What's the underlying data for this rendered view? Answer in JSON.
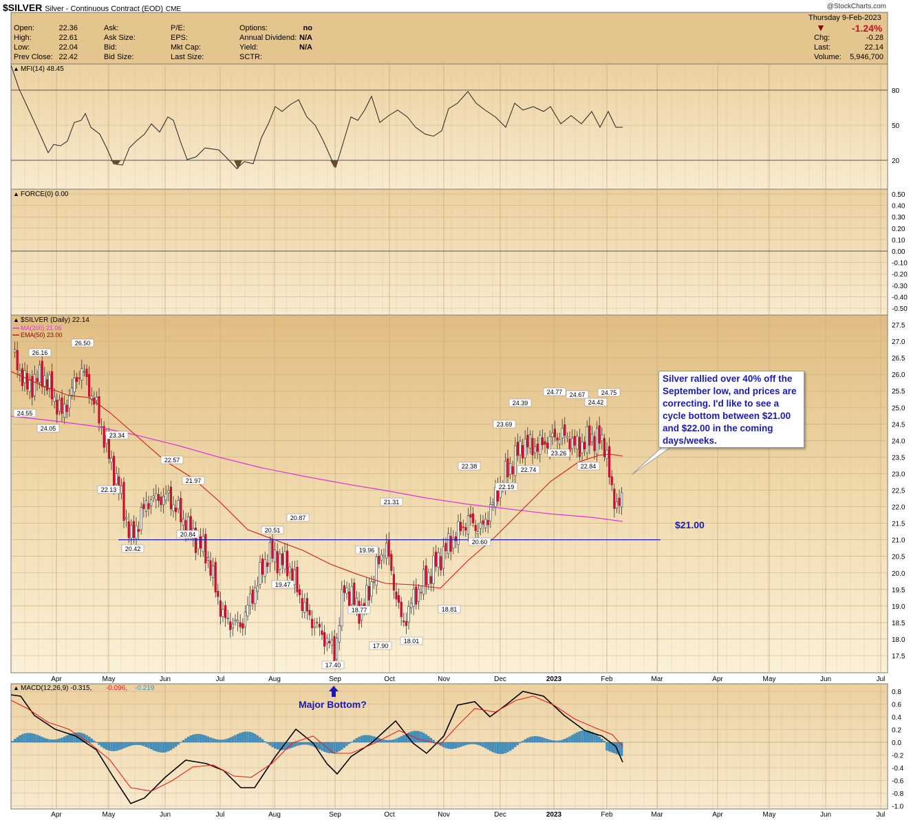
{
  "header": {
    "symbol": "$SILVER",
    "description": "Silver - Continuous Contract (EOD)",
    "exchange": "CME",
    "watermark": "@StockCharts.com",
    "date": "Thursday  9-Feb-2023",
    "change_pct": "-1.24%"
  },
  "quote_left": [
    {
      "label": "Open:",
      "value": "22.36"
    },
    {
      "label": "High:",
      "value": "22.61"
    },
    {
      "label": "Low:",
      "value": "22.04"
    },
    {
      "label": "Prev Close:",
      "value": "22.42"
    }
  ],
  "quote_mid1": [
    "Ask:",
    "Ask Size:",
    "Bid:",
    "Bid Size:"
  ],
  "quote_mid2": [
    "P/E:",
    "EPS:",
    "Mkt Cap:",
    "Last Size:"
  ],
  "quote_mid3": [
    {
      "label": "Options:",
      "value": "no"
    },
    {
      "label": "Annual Dividend:",
      "value": "N/A"
    },
    {
      "label": "Yield:",
      "value": "N/A"
    },
    {
      "label": "SCTR:",
      "value": ""
    }
  ],
  "quote_right": [
    {
      "label": "Chg:",
      "value": "-0.28"
    },
    {
      "label": "Last:",
      "value": "22.14"
    },
    {
      "label": "Volume:",
      "value": "5,946,700"
    }
  ],
  "colors": {
    "up": "#ffffff",
    "down": "#c8102e",
    "ma200": "#dd33dd",
    "ema50": "#d01818",
    "macd": "#000000",
    "signal": "#e02020",
    "histogram": "#3f8fc0",
    "annotation": "#1a1ab0",
    "panel_bg": "#e6c489"
  },
  "mfi_panel": {
    "label": "MFI(14) 48.45",
    "ticks": [
      "80",
      "50",
      "20"
    ]
  },
  "force_panel": {
    "label": "FORCE(0) 0.00",
    "ticks": [
      "0.50",
      "0.40",
      "0.30",
      "0.20",
      "0.10",
      "0.00",
      "-0.10",
      "-0.20",
      "-0.30",
      "-0.40",
      "-0.50"
    ]
  },
  "price_panel": {
    "label": "$SILVER (Daily) 22.14",
    "ma_label": "MA(200) 21.06",
    "ema_label": "EMA(50) 23.00",
    "ticks": [
      "27.5",
      "27.0",
      "26.5",
      "26.0",
      "25.5",
      "25.0",
      "24.5",
      "24.0",
      "23.5",
      "23.0",
      "22.5",
      "22.0",
      "21.5",
      "21.0",
      "20.5",
      "20.0",
      "19.5",
      "19.0",
      "18.5",
      "18.0",
      "17.5"
    ],
    "x_labels": [
      "Apr",
      "May",
      "Jun",
      "Jul",
      "Aug",
      "Sep",
      "Oct",
      "Nov",
      "Dec",
      "2023",
      "Feb",
      "Mar",
      "Apr",
      "May",
      "Jun",
      "Jul"
    ],
    "annotation_level": "$21.00",
    "callout": "Silver rallied over 40% off the September low, and prices are correcting. I'd like to see a cycle bottom between $21.00 and $22.00 in the coming days/weeks."
  },
  "macd_panel": {
    "label": "MACD(12,26,9) -0.315,",
    "signal_val": "-0.096,",
    "hist_val": "-0.219",
    "annotation": "Major Bottom?",
    "ticks": [
      "0.8",
      "0.6",
      "0.4",
      "0.2",
      "0.0",
      "-0.2",
      "-0.4",
      "-0.6",
      "-0.8",
      "-1.0"
    ],
    "x_labels": [
      "Apr",
      "May",
      "Jun",
      "Jul",
      "Aug",
      "Sep",
      "Oct",
      "Nov",
      "Dec",
      "2023",
      "Feb",
      "Mar",
      "Apr",
      "May",
      "Jun",
      "Jul"
    ]
  },
  "chart_data": {
    "type": "candlestick",
    "title": "$SILVER Silver - Continuous Contract (EOD) CME",
    "price_labels": [
      {
        "date": "Mar",
        "value": 26.16
      },
      {
        "date": "Apr",
        "value": 26.5
      },
      {
        "date": "Mar",
        "value": 24.55
      },
      {
        "date": "Apr",
        "value": 24.05
      },
      {
        "date": "Apr",
        "value": 23.34
      },
      {
        "date": "Apr",
        "value": 22.13
      },
      {
        "date": "May",
        "value": 20.42
      },
      {
        "date": "May",
        "value": 22.57
      },
      {
        "date": "Jun",
        "value": 21.97
      },
      {
        "date": "Jun",
        "value": 20.84
      },
      {
        "date": "Jul",
        "value": 20.51
      },
      {
        "date": "Jul",
        "value": 20.87
      },
      {
        "date": "Jul",
        "value": 19.47
      },
      {
        "date": "Sep",
        "value": 17.4
      },
      {
        "date": "Aug",
        "value": 18.77
      },
      {
        "date": "Aug",
        "value": 19.96
      },
      {
        "date": "Sep",
        "value": 17.9
      },
      {
        "date": "Oct",
        "value": 21.31
      },
      {
        "date": "Oct",
        "value": 18.01
      },
      {
        "date": "Oct",
        "value": 18.81
      },
      {
        "date": "Nov",
        "value": 22.38
      },
      {
        "date": "Nov",
        "value": 20.6
      },
      {
        "date": "Nov",
        "value": 22.19
      },
      {
        "date": "Nov",
        "value": 23.69
      },
      {
        "date": "Dec",
        "value": 22.74
      },
      {
        "date": "Dec",
        "value": 24.39
      },
      {
        "date": "Dec",
        "value": 24.77
      },
      {
        "date": "Dec",
        "value": 23.26
      },
      {
        "date": "Jan",
        "value": 24.67
      },
      {
        "date": "Jan",
        "value": 22.84
      },
      {
        "date": "Jan",
        "value": 24.42
      },
      {
        "date": "Feb",
        "value": 24.75
      }
    ],
    "close_path": [
      [
        "Mar",
        26.6
      ],
      [
        "Mar",
        25.6
      ],
      [
        "Mar",
        26.0
      ],
      [
        "Apr",
        24.8
      ],
      [
        "Apr",
        26.2
      ],
      [
        "Apr",
        25.0
      ],
      [
        "Apr",
        23.4
      ],
      [
        "May",
        22.4
      ],
      [
        "May",
        21.0
      ],
      [
        "May",
        22.2
      ],
      [
        "Jun",
        22.3
      ],
      [
        "Jun",
        21.3
      ],
      [
        "Jul",
        20.6
      ],
      [
        "Jul",
        18.6
      ],
      [
        "Jul",
        18.4
      ],
      [
        "Aug",
        20.6
      ],
      [
        "Aug",
        20.2
      ],
      [
        "Aug",
        18.8
      ],
      [
        "Sep",
        17.6
      ],
      [
        "Sep",
        19.6
      ],
      [
        "Sep",
        18.8
      ],
      [
        "Oct",
        20.9
      ],
      [
        "Oct",
        18.4
      ],
      [
        "Oct",
        19.2
      ],
      [
        "Nov",
        20.8
      ],
      [
        "Nov",
        21.6
      ],
      [
        "Nov",
        21.3
      ],
      [
        "Dec",
        22.8
      ],
      [
        "Dec",
        23.9
      ],
      [
        "Dec",
        23.8
      ],
      [
        "Jan",
        24.2
      ],
      [
        "Jan",
        23.8
      ],
      [
        "Jan",
        24.1
      ],
      [
        "Feb",
        23.9
      ],
      [
        "Feb",
        22.2
      ],
      [
        "Feb",
        22.14
      ]
    ],
    "support_level": 21.0,
    "mfi_last": 48.45,
    "macd_last": -0.315,
    "macd_signal_last": -0.096,
    "macd_hist_last": -0.219,
    "ylim": [
      17.2,
      27.7
    ]
  }
}
